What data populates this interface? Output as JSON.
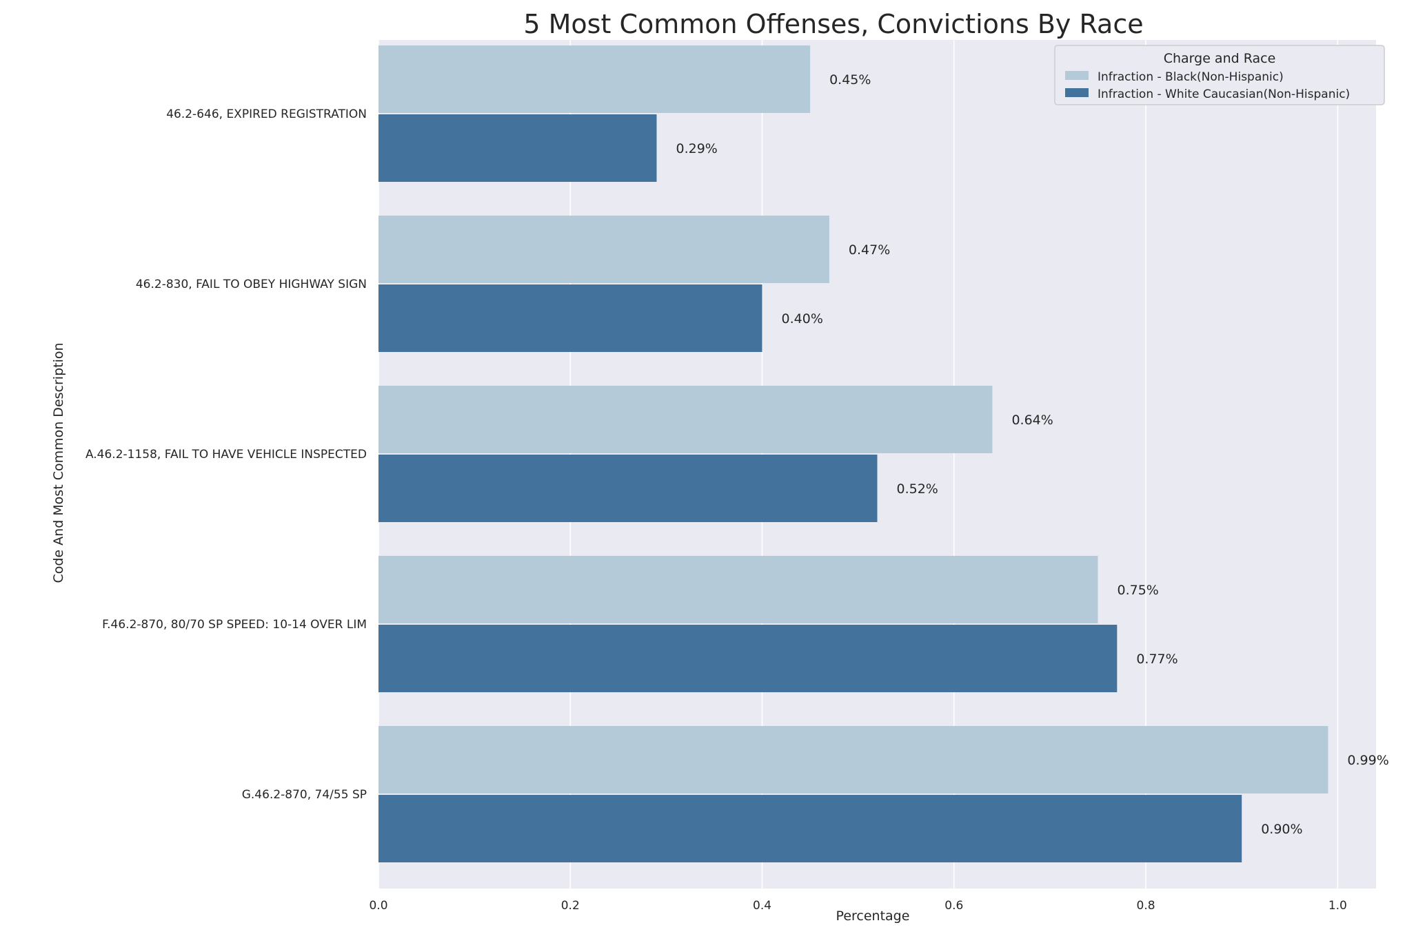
{
  "chart_data": {
    "type": "bar",
    "orientation": "horizontal",
    "title": "5 Most Common Offenses, Convictions By Race",
    "xlabel": "Percentage",
    "ylabel": "Code And Most Common Description",
    "categories": [
      "46.2-646, EXPIRED REGISTRATION",
      "46.2-830, FAIL TO OBEY HIGHWAY SIGN",
      "A.46.2-1158, FAIL TO HAVE VEHICLE INSPECTED",
      "F.46.2-870, 80/70 SP SPEED: 10-14 OVER LIM",
      "G.46.2-870, 74/55 SP"
    ],
    "series": [
      {
        "name": "Infraction - Black(Non-Hispanic)",
        "color": "#b4cad8",
        "values": [
          0.45,
          0.47,
          0.64,
          0.75,
          0.99
        ],
        "labels": [
          "0.45%",
          "0.47%",
          "0.64%",
          "0.75%",
          "0.99%"
        ]
      },
      {
        "name": "Infraction - White Caucasian(Non-Hispanic)",
        "color": "#43739c",
        "values": [
          0.29,
          0.4,
          0.52,
          0.77,
          0.9
        ],
        "labels": [
          "0.29%",
          "0.40%",
          "0.52%",
          "0.77%",
          "0.90%"
        ]
      }
    ],
    "xlim": [
      0,
      1.04
    ],
    "xticks": [
      0.0,
      0.2,
      0.4,
      0.6,
      0.8,
      1.0
    ],
    "xtick_labels": [
      "0.0",
      "0.2",
      "0.4",
      "0.6",
      "0.8",
      "1.0"
    ],
    "grid": true,
    "background_color": "#eaeaf2",
    "legend": {
      "title": "Charge and Race",
      "placement": "top-right"
    }
  }
}
